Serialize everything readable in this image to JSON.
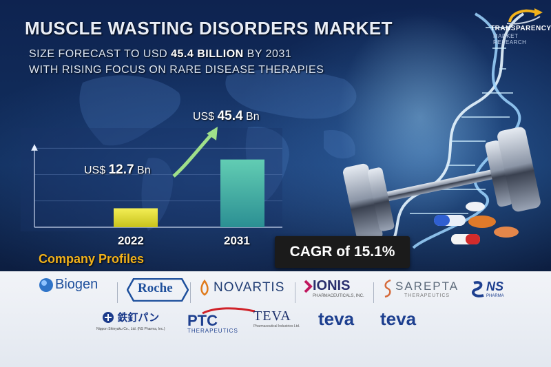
{
  "title": "MUSCLE WASTING DISORDERS MARKET",
  "subtitle": {
    "line1_prefix": "SIZE FORECAST TO USD",
    "line1_value": "45.4 BILLION",
    "line1_suffix": "BY 2031",
    "line2": "WITH RISING FOCUS ON RARE DISEASE THERAPIES"
  },
  "brand": {
    "name": "TRANSPARENCY",
    "tagline": "MARKET RESEARCH"
  },
  "chart_data": {
    "type": "bar",
    "categories": [
      "2022",
      "2031"
    ],
    "values": [
      12.7,
      45.4
    ],
    "value_labels": [
      {
        "prefix": "US$",
        "value": "12.7",
        "unit": "Bn"
      },
      {
        "prefix": "US$",
        "value": "45.4",
        "unit": "Bn"
      }
    ],
    "ylim": [
      0,
      60
    ],
    "grid": true,
    "colors": [
      "#e8e43a",
      "#3fb6a8"
    ]
  },
  "cagr": "CAGR of 15.1%",
  "company_profiles": {
    "heading": "Company Profiles",
    "row1": [
      {
        "name": "Biogen",
        "color": "#1d4f9c"
      },
      {
        "name": "Roche",
        "color": "#1d4f9c"
      },
      {
        "name": "NOVARTIS",
        "color": "#1f3c73"
      },
      {
        "name": "IONIS",
        "sub": "PHARMACEUTICALS, INC.",
        "color": "#2a2f6e"
      },
      {
        "name": "SAREPTA",
        "sub": "THERAPEUTICS",
        "color": "#5c6a7a"
      },
      {
        "name": "NS",
        "sub": "PHARMA",
        "color": "#1d3f8f"
      }
    ],
    "row2": [
      {
        "name": "鉄釘パン",
        "sub": "Nippon Shinyaku Co., Ltd. (NS Pharma, Inc.)",
        "color": "#1b3a8a"
      },
      {
        "name": "PTC",
        "sub": "THERAPEUTICS",
        "color": "#1d3f8f"
      },
      {
        "name": "TEVA",
        "sub": "Pharmaceutical Industries Ltd.",
        "color": "#1c2f6a"
      },
      {
        "name": "teva",
        "color": "#1d3f8f"
      },
      {
        "name": "teva",
        "color": "#1d3f8f"
      }
    ]
  }
}
